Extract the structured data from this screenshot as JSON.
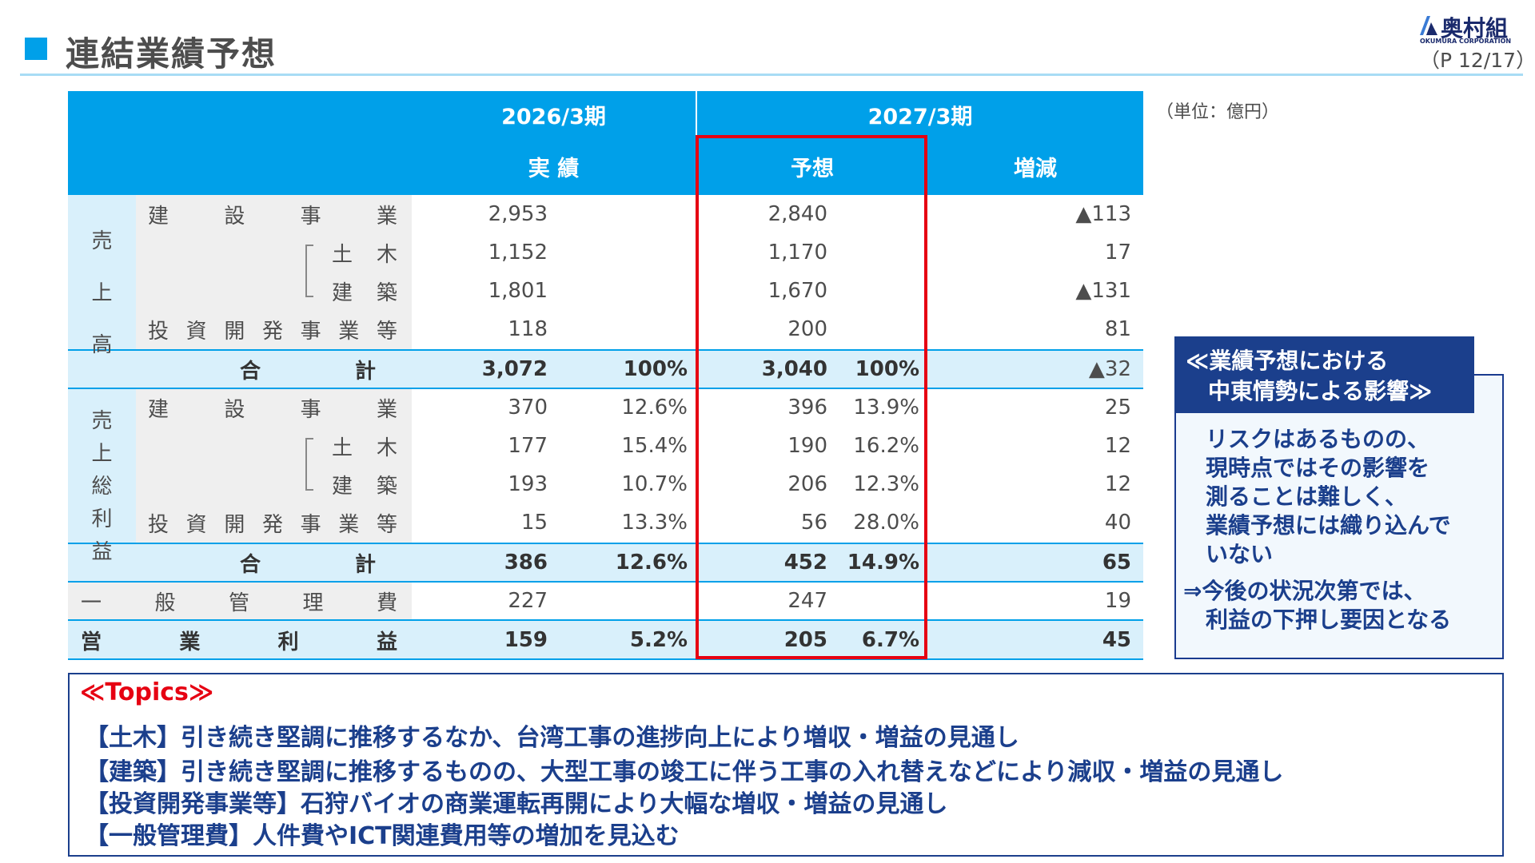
{
  "header": {
    "title": "連結業績予想",
    "page_number": "（P 12/17）",
    "logo_name": "奥村組",
    "logo_sub": "OKUMURA CORPORATION"
  },
  "unit": "（単位：億円）",
  "table": {
    "period_actual": "2026/3期",
    "period_forecast": "2027/3期",
    "col_actual": "実 績",
    "col_forecast": "予想",
    "col_change": "増減",
    "sales_label": [
      "売",
      "上",
      "高"
    ],
    "gross_label": [
      "売",
      "上",
      "総",
      "利",
      "益"
    ],
    "item_construction": [
      "建",
      "設",
      "事",
      "業"
    ],
    "item_civil": [
      "土",
      "木"
    ],
    "item_building": [
      "建",
      "築"
    ],
    "item_investment": [
      "投",
      "資",
      "開",
      "発",
      "事",
      "業",
      "等"
    ],
    "item_total": [
      "合",
      "計"
    ],
    "item_sga": [
      "一",
      "般",
      "管",
      "理",
      "費"
    ],
    "item_operating": [
      "営",
      "業",
      "利",
      "益"
    ],
    "sales": {
      "construction": {
        "actual": "2,953",
        "forecast": "2,840",
        "change": "▲113"
      },
      "civil": {
        "actual": "1,152",
        "forecast": "1,170",
        "change": "17"
      },
      "building": {
        "actual": "1,801",
        "forecast": "1,670",
        "change": "▲131"
      },
      "investment": {
        "actual": "118",
        "forecast": "200",
        "change": "81"
      },
      "total": {
        "actual": "3,072",
        "actual_pct": "100%",
        "forecast": "3,040",
        "forecast_pct": "100%",
        "change": "▲32"
      }
    },
    "gross": {
      "construction": {
        "actual": "370",
        "actual_pct": "12.6%",
        "forecast": "396",
        "forecast_pct": "13.9%",
        "change": "25"
      },
      "civil": {
        "actual": "177",
        "actual_pct": "15.4%",
        "forecast": "190",
        "forecast_pct": "16.2%",
        "change": "12"
      },
      "building": {
        "actual": "193",
        "actual_pct": "10.7%",
        "forecast": "206",
        "forecast_pct": "12.3%",
        "change": "12"
      },
      "investment": {
        "actual": "15",
        "actual_pct": "13.3%",
        "forecast": "56",
        "forecast_pct": "28.0%",
        "change": "40"
      },
      "total": {
        "actual": "386",
        "actual_pct": "12.6%",
        "forecast": "452",
        "forecast_pct": "14.9%",
        "change": "65"
      }
    },
    "sga": {
      "actual": "227",
      "forecast": "247",
      "change": "19"
    },
    "operating": {
      "actual": "159",
      "actual_pct": "5.2%",
      "forecast": "205",
      "forecast_pct": "6.7%",
      "change": "45"
    }
  },
  "side_box": {
    "title_line1": "≪業績予想における",
    "title_line2": "中東情勢による影響≫",
    "body": [
      "リスクはあるものの、",
      "現時点ではその影響を",
      "測ることは難しく、",
      "業績予想には織り込んで",
      "いない"
    ],
    "note_line1": "⇒今後の状況次第では、",
    "note_line2": "利益の下押し要因となる"
  },
  "topics": {
    "title": "≪Topics≫",
    "items": [
      "【土木】引き続き堅調に推移するなか、台湾工事の進捗向上により増収・増益の見通し",
      "【建築】引き続き堅調に推移するものの、大型工事の竣工に伴う工事の入れ替えなどにより減収・増益の見通し",
      "【投資開発事業等】石狩バイオの商業運転再開により大幅な増収・増益の見通し",
      "【一般管理費】人件費やICT関連費用等の増加を見込む"
    ]
  },
  "colors": {
    "header_blue": "#00a0e9",
    "navy": "#1b3f8c",
    "highlight_red": "#e60012",
    "total_row": "#d9f0fb",
    "label_grey": "#efefef"
  }
}
